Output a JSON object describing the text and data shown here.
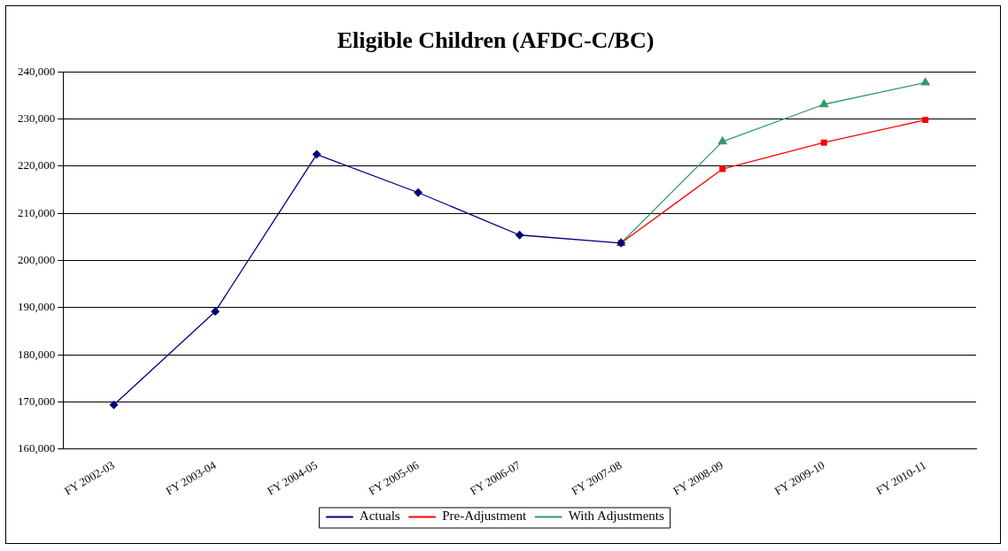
{
  "chart_data": {
    "type": "line",
    "title": "Eligible Children (AFDC-C/BC)",
    "categories": [
      "FY 2002-03",
      "FY 2003-04",
      "FY 2004-05",
      "FY 2005-06",
      "FY 2006-07",
      "FY 2007-08",
      "FY 2008-09",
      "FY 2009-10",
      "FY 2010-11"
    ],
    "series": [
      {
        "name": "Actuals",
        "color": "#000080",
        "marker": "diamond",
        "values": [
          169400,
          189200,
          222500,
          214400,
          205400,
          203700,
          null,
          null,
          null
        ]
      },
      {
        "name": "Pre-Adjustment",
        "color": "#ff0000",
        "marker": "square",
        "values": [
          null,
          null,
          null,
          null,
          null,
          203700,
          219400,
          225000,
          229800
        ]
      },
      {
        "name": "With Adjustments",
        "color": "#339966",
        "marker": "triangle",
        "values": [
          null,
          null,
          null,
          null,
          null,
          203700,
          225200,
          233100,
          237700
        ]
      }
    ],
    "ylim": [
      160000,
      240000
    ],
    "yticks": [
      {
        "value": 160000,
        "label": "160,000"
      },
      {
        "value": 170000,
        "label": "170,000"
      },
      {
        "value": 180000,
        "label": "180,000"
      },
      {
        "value": 190000,
        "label": "190,000"
      },
      {
        "value": 200000,
        "label": "200,000"
      },
      {
        "value": 210000,
        "label": "210,000"
      },
      {
        "value": 220000,
        "label": "220,000"
      },
      {
        "value": 230000,
        "label": "230,000"
      },
      {
        "value": 240000,
        "label": "240,000"
      }
    ],
    "grid": "y",
    "legend": "bottom"
  }
}
